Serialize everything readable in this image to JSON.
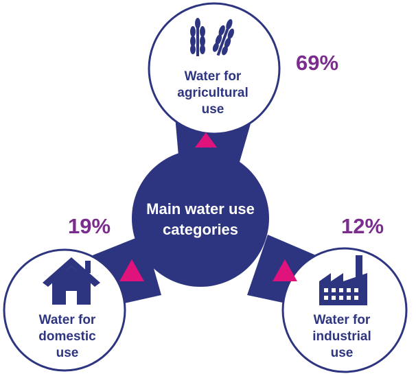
{
  "center": {
    "lines": [
      "Main water use",
      "categories"
    ]
  },
  "nodes": [
    {
      "lines": [
        "Water for",
        "agricultural",
        "use"
      ],
      "percent": "69%"
    },
    {
      "lines": [
        "Water for",
        "domestic",
        "use"
      ],
      "percent": "19%"
    },
    {
      "lines": [
        "Water for",
        "industrial",
        "use"
      ],
      "percent": "12%"
    }
  ]
}
